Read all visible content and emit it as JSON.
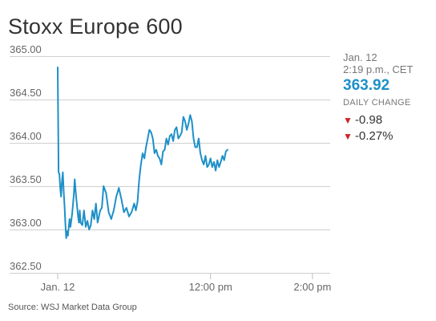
{
  "chart_data": {
    "type": "line",
    "title": "Stoxx Europe 600",
    "source": "Source: WSJ Market Data Group",
    "ylim": [
      362.5,
      365.0
    ],
    "y_ticks": [
      "365.00",
      "364.50",
      "364.00",
      "363.50",
      "363.00",
      "362.50"
    ],
    "y_tick_values": [
      365.0,
      364.5,
      364.0,
      363.5,
      363.0,
      362.5
    ],
    "x_ticks": [
      {
        "label": "Jan. 12",
        "x": "09:00"
      },
      {
        "label": "12:00 pm",
        "x": "12:00"
      },
      {
        "label": "2:00 pm",
        "x": "14:00"
      }
    ],
    "xlim": [
      "09:00",
      "14:19"
    ],
    "grid": "horizontal",
    "line_color": "#1e90c8",
    "series": [
      {
        "points": [
          [
            "09:00",
            364.87
          ],
          [
            "09:01",
            363.66
          ],
          [
            "09:02",
            363.64
          ],
          [
            "09:03",
            363.48
          ],
          [
            "09:04",
            363.38
          ],
          [
            "09:05",
            363.55
          ],
          [
            "09:06",
            363.66
          ],
          [
            "09:07",
            363.45
          ],
          [
            "09:08",
            363.28
          ],
          [
            "09:09",
            363.08
          ],
          [
            "09:10",
            362.9
          ],
          [
            "09:11",
            362.98
          ],
          [
            "09:12",
            362.93
          ],
          [
            "09:14",
            363.12
          ],
          [
            "09:15",
            363.03
          ],
          [
            "09:17",
            363.18
          ],
          [
            "09:19",
            363.4
          ],
          [
            "09:20",
            363.58
          ],
          [
            "09:21",
            363.45
          ],
          [
            "09:22",
            363.35
          ],
          [
            "09:24",
            363.15
          ],
          [
            "09:25",
            363.08
          ],
          [
            "09:26",
            363.22
          ],
          [
            "09:27",
            363.08
          ],
          [
            "09:29",
            363.05
          ],
          [
            "09:31",
            363.22
          ],
          [
            "09:33",
            363.03
          ],
          [
            "09:35",
            363.1
          ],
          [
            "09:37",
            363.0
          ],
          [
            "09:39",
            363.05
          ],
          [
            "09:41",
            363.22
          ],
          [
            "09:43",
            363.12
          ],
          [
            "09:45",
            363.3
          ],
          [
            "09:47",
            363.08
          ],
          [
            "09:50",
            363.22
          ],
          [
            "09:52",
            363.25
          ],
          [
            "09:54",
            363.5
          ],
          [
            "09:57",
            363.42
          ],
          [
            "10:00",
            363.2
          ],
          [
            "10:03",
            363.12
          ],
          [
            "10:06",
            363.22
          ],
          [
            "10:09",
            363.38
          ],
          [
            "10:12",
            363.48
          ],
          [
            "10:15",
            363.35
          ],
          [
            "10:18",
            363.2
          ],
          [
            "10:21",
            363.25
          ],
          [
            "10:24",
            363.15
          ],
          [
            "10:27",
            363.2
          ],
          [
            "10:30",
            363.3
          ],
          [
            "10:32",
            363.22
          ],
          [
            "10:34",
            363.32
          ],
          [
            "10:36",
            363.58
          ],
          [
            "10:38",
            363.75
          ],
          [
            "10:40",
            363.88
          ],
          [
            "10:42",
            363.82
          ],
          [
            "10:44",
            363.95
          ],
          [
            "10:46",
            364.05
          ],
          [
            "10:48",
            364.15
          ],
          [
            "10:50",
            364.12
          ],
          [
            "10:52",
            364.05
          ],
          [
            "10:54",
            363.88
          ],
          [
            "10:56",
            363.92
          ],
          [
            "10:58",
            363.85
          ],
          [
            "11:00",
            363.82
          ],
          [
            "11:02",
            363.75
          ],
          [
            "11:04",
            363.9
          ],
          [
            "11:06",
            363.92
          ],
          [
            "11:08",
            364.05
          ],
          [
            "11:10",
            363.98
          ],
          [
            "11:12",
            364.08
          ],
          [
            "11:14",
            364.1
          ],
          [
            "11:16",
            364.02
          ],
          [
            "11:18",
            364.15
          ],
          [
            "11:20",
            364.18
          ],
          [
            "11:22",
            364.05
          ],
          [
            "11:24",
            364.08
          ],
          [
            "11:26",
            364.12
          ],
          [
            "11:28",
            364.3
          ],
          [
            "11:30",
            364.25
          ],
          [
            "11:32",
            364.15
          ],
          [
            "11:34",
            364.22
          ],
          [
            "11:36",
            364.32
          ],
          [
            "11:38",
            364.25
          ],
          [
            "11:40",
            364.05
          ],
          [
            "11:42",
            363.95
          ],
          [
            "11:44",
            363.95
          ],
          [
            "11:46",
            364.05
          ],
          [
            "11:48",
            363.88
          ],
          [
            "11:50",
            363.8
          ],
          [
            "11:52",
            363.75
          ],
          [
            "11:54",
            363.85
          ],
          [
            "11:56",
            363.72
          ],
          [
            "11:58",
            363.75
          ],
          [
            "12:00",
            363.82
          ],
          [
            "12:02",
            363.72
          ],
          [
            "12:04",
            363.78
          ],
          [
            "12:06",
            363.68
          ],
          [
            "12:08",
            363.8
          ],
          [
            "12:10",
            363.72
          ],
          [
            "12:12",
            363.78
          ],
          [
            "12:14",
            363.85
          ],
          [
            "12:16",
            363.8
          ],
          [
            "12:18",
            363.9
          ],
          [
            "12:20",
            363.92
          ]
        ]
      }
    ]
  },
  "info": {
    "date": "Jan. 12",
    "time": "2:19 p.m., CET",
    "value": "363.92",
    "label": "DAILY CHANGE",
    "change_abs": "-0.98",
    "change_pct": "-0.27%",
    "arrow": "▼",
    "arrow_color": "#d21f26"
  }
}
